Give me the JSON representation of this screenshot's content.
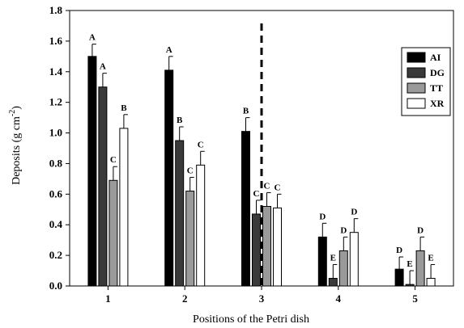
{
  "chart_data": {
    "type": "bar",
    "xlabel": "Positions of the Petri dish",
    "ylabel": "Deposits (g cm",
    "ylabel_sup": "-2",
    "ylabel_close": ")",
    "ylim": [
      0,
      1.8
    ],
    "yticks": [
      "0.0",
      "0.2",
      "0.4",
      "0.6",
      "0.8",
      "1.0",
      "1.2",
      "1.4",
      "1.6",
      "1.8"
    ],
    "categories": [
      "1",
      "2",
      "3",
      "4",
      "5"
    ],
    "legend_position": "top-right",
    "grid": false,
    "series": [
      {
        "name": "AI",
        "color": "#000000",
        "values": [
          1.5,
          1.41,
          1.01,
          0.32,
          0.11
        ],
        "errors": [
          0.08,
          0.09,
          0.09,
          0.09,
          0.08
        ],
        "letters": [
          "A",
          "A",
          "B",
          "D",
          "D"
        ]
      },
      {
        "name": "DG",
        "color": "#3a3a3a",
        "values": [
          1.3,
          0.95,
          0.47,
          0.05,
          0.01
        ],
        "errors": [
          0.09,
          0.09,
          0.09,
          0.09,
          0.09
        ],
        "letters": [
          "A",
          "B",
          "C",
          "E",
          "E"
        ]
      },
      {
        "name": "TT",
        "color": "#9a9a9a",
        "values": [
          0.69,
          0.62,
          0.52,
          0.23,
          0.23
        ],
        "errors": [
          0.09,
          0.09,
          0.09,
          0.09,
          0.09
        ],
        "letters": [
          "C",
          "C",
          "C",
          "D",
          "D"
        ]
      },
      {
        "name": "XR",
        "color": "#ffffff",
        "values": [
          1.03,
          0.79,
          0.51,
          0.35,
          0.05
        ],
        "errors": [
          0.09,
          0.09,
          0.09,
          0.09,
          0.09
        ],
        "letters": [
          "B",
          "C",
          "C",
          "D",
          "E"
        ]
      }
    ],
    "divider_after_category": "3"
  }
}
